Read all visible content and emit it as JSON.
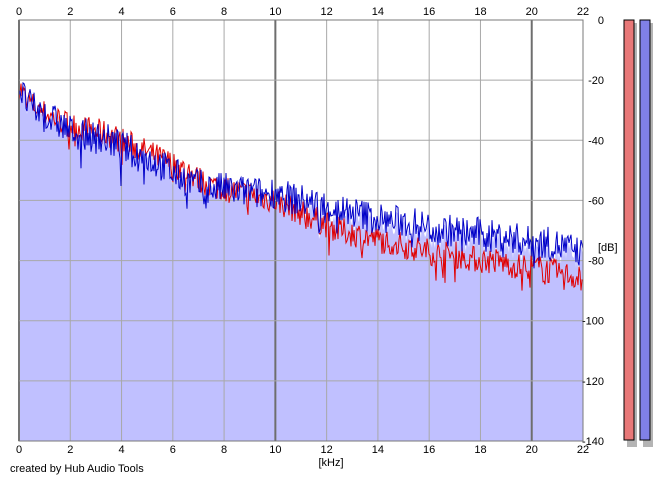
{
  "chart_data": {
    "type": "line",
    "xlabel": "[kHz]",
    "ylabel": "[dB]",
    "xlim": [
      0,
      22
    ],
    "ylim": [
      -140,
      0
    ],
    "x_ticks": [
      "0",
      "2",
      "4",
      "6",
      "8",
      "10",
      "12",
      "14",
      "16",
      "18",
      "20",
      "22"
    ],
    "y_ticks": [
      "0",
      "-20",
      "-40",
      "-60",
      "-80",
      "-100",
      "-120",
      "-140"
    ],
    "grid": true,
    "fill_color": "#c0c0ff",
    "series": [
      {
        "color": "#e00000",
        "x": [
          0,
          0.2,
          0.5,
          1,
          1.5,
          2,
          2.5,
          3,
          3.5,
          4,
          4.5,
          5,
          5.5,
          6,
          6.5,
          7,
          7.5,
          8,
          8.5,
          9,
          9.5,
          10,
          10.5,
          11,
          11.5,
          12,
          12.5,
          13,
          13.5,
          14,
          14.5,
          15,
          15.5,
          16,
          16.5,
          17,
          17.5,
          18,
          18.5,
          19,
          19.5,
          20,
          20.5,
          21,
          21.5,
          22
        ],
        "y": [
          -22,
          -25,
          -28,
          -31,
          -33,
          -35,
          -36,
          -37,
          -38,
          -40,
          -42,
          -44,
          -46,
          -48,
          -50,
          -53,
          -55,
          -56,
          -57,
          -58,
          -59,
          -60,
          -62,
          -64,
          -66,
          -68,
          -70,
          -71,
          -72,
          -73,
          -74,
          -75,
          -76,
          -77,
          -78,
          -78,
          -79,
          -80,
          -80,
          -81,
          -82,
          -82,
          -83,
          -84,
          -85,
          -86
        ]
      },
      {
        "color": "#0000c8",
        "x": [
          0,
          0.2,
          0.5,
          1,
          1.5,
          2,
          2.5,
          3,
          3.5,
          4,
          4.5,
          5,
          5.5,
          6,
          6.5,
          7,
          7.5,
          8,
          8.5,
          9,
          9.5,
          10,
          10.5,
          11,
          11.5,
          12,
          12.5,
          13,
          13.5,
          14,
          14.5,
          15,
          15.5,
          16,
          16.5,
          17,
          17.5,
          18,
          18.5,
          19,
          19.5,
          20,
          20.5,
          21,
          21.5,
          22
        ],
        "y": [
          -22,
          -26,
          -29,
          -32,
          -34,
          -37,
          -38,
          -39,
          -40,
          -42,
          -44,
          -46,
          -48,
          -51,
          -53,
          -55,
          -56,
          -56,
          -57,
          -57,
          -58,
          -57,
          -59,
          -60,
          -61,
          -62,
          -63,
          -64,
          -65,
          -66,
          -67,
          -67,
          -68,
          -69,
          -70,
          -70,
          -71,
          -71,
          -72,
          -72,
          -73,
          -74,
          -74,
          -75,
          -76,
          -78
        ]
      }
    ],
    "level_meters": [
      {
        "color": "#e87878"
      },
      {
        "color": "#8080e8"
      }
    ]
  },
  "credit": "created by Hub Audio Tools"
}
